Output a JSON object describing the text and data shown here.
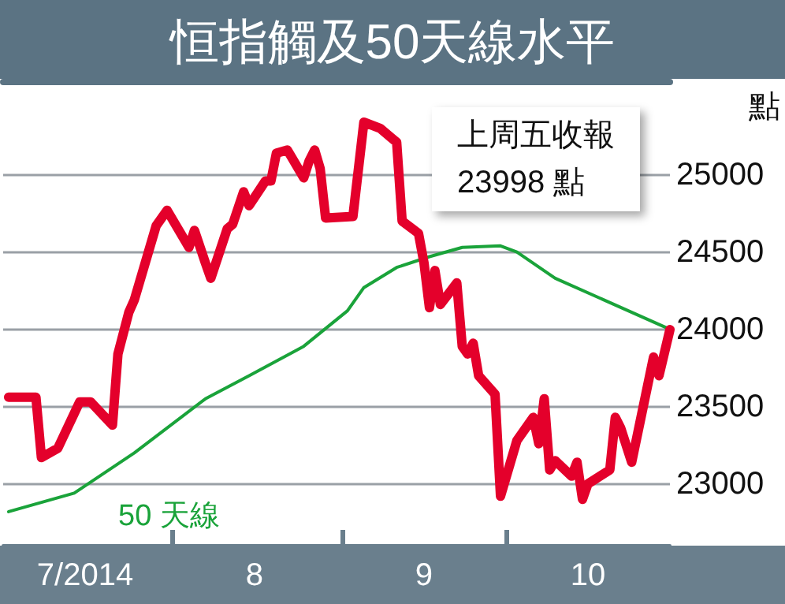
{
  "chart_data": {
    "type": "line",
    "title": "恒指觸及50天線水平",
    "ylabel": "點",
    "annotations": [
      "上周五收報\n23998 點"
    ],
    "xlim": [
      "2014-07-01",
      "2014-10-31"
    ],
    "xticks": [
      {
        "value": "2014-07-16",
        "label": "7/2014"
      },
      {
        "value": "2014-08-01",
        "label": null
      },
      {
        "value": "2014-08-16",
        "label": "8"
      },
      {
        "value": "2014-09-01",
        "label": null
      },
      {
        "value": "2014-09-16",
        "label": "9"
      },
      {
        "value": "2014-10-01",
        "label": null
      },
      {
        "value": "2014-10-16",
        "label": "10"
      }
    ],
    "ylim": [
      22600,
      25600
    ],
    "yticks": [
      23000,
      23500,
      24000,
      24500,
      25000
    ],
    "grid": "y",
    "legend": false,
    "marker": "none",
    "line_style": "solid",
    "series": [
      {
        "color": "#e4002b",
        "x": [
          "2014-07-02",
          "2014-07-07",
          "2014-07-08",
          "2014-07-11",
          "2014-07-15",
          "2014-07-17",
          "2014-07-21",
          "2014-07-22",
          "2014-07-24",
          "2014-07-25",
          "2014-07-29",
          "2014-07-31",
          "2014-08-04",
          "2014-08-05",
          "2014-08-07",
          "2014-08-08",
          "2014-08-11",
          "2014-08-12",
          "2014-08-14",
          "2014-08-15",
          "2014-08-18",
          "2014-08-19",
          "2014-08-20",
          "2014-08-22",
          "2014-08-25",
          "2014-08-26",
          "2014-08-27",
          "2014-08-28",
          "2014-08-29",
          "2014-09-03",
          "2014-09-05",
          "2014-09-08",
          "2014-09-10",
          "2014-09-11",
          "2014-09-12",
          "2014-09-15",
          "2014-09-16",
          "2014-09-17",
          "2014-09-18",
          "2014-09-19",
          "2014-09-22",
          "2014-09-23",
          "2014-09-24",
          "2014-09-25",
          "2014-09-26",
          "2014-09-29",
          "2014-09-30",
          "2014-10-03",
          "2014-10-06",
          "2014-10-07",
          "2014-10-08",
          "2014-10-09",
          "2014-10-10",
          "2014-10-13",
          "2014-10-14",
          "2014-10-15",
          "2014-10-16",
          "2014-10-20",
          "2014-10-21",
          "2014-10-22",
          "2014-10-24",
          "2014-10-28",
          "2014-10-29",
          "2014-10-31"
        ],
        "values": [
          23560,
          23560,
          23170,
          23230,
          23530,
          23530,
          23380,
          23840,
          24110,
          24190,
          24670,
          24770,
          24530,
          24640,
          24430,
          24330,
          24650,
          24680,
          24890,
          24800,
          24960,
          24960,
          25140,
          25160,
          24980,
          25090,
          25160,
          25040,
          24720,
          24730,
          25340,
          25300,
          25240,
          25210,
          24700,
          24620,
          24430,
          24140,
          24380,
          24160,
          24300,
          23890,
          23840,
          23910,
          23700,
          23580,
          22920,
          23280,
          23430,
          23260,
          23550,
          23090,
          23150,
          23050,
          23140,
          22900,
          23000,
          23090,
          23430,
          23360,
          23140,
          23820,
          23700,
          23998
        ]
      },
      {
        "name": "50 天線",
        "color": "#1aa33a",
        "x": [
          "2014-07-02",
          "2014-07-14",
          "2014-07-25",
          "2014-08-07",
          "2014-08-15",
          "2014-08-25",
          "2014-09-02",
          "2014-09-05",
          "2014-09-11",
          "2014-09-17",
          "2014-09-23",
          "2014-09-30",
          "2014-10-03",
          "2014-10-10",
          "2014-10-31"
        ],
        "values": [
          22820,
          22940,
          23200,
          23550,
          23700,
          23890,
          24120,
          24270,
          24400,
          24470,
          24530,
          24540,
          24500,
          24330,
          24000
        ]
      }
    ]
  }
}
